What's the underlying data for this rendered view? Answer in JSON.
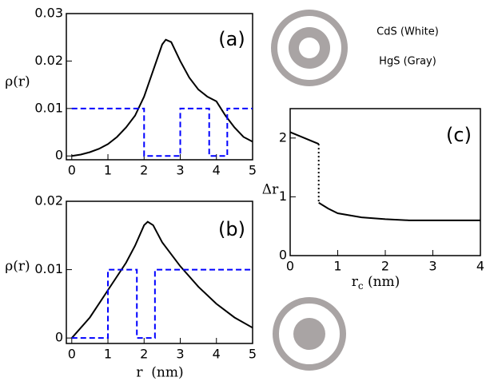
{
  "chart_data": [
    {
      "type": "line",
      "panel_label": "(a)",
      "ylabel": "ρ(r)",
      "xlim": [
        -0.15,
        5
      ],
      "ylim": [
        -0.0008,
        0.03
      ],
      "xticks": [
        0,
        1,
        2,
        3,
        4,
        5
      ],
      "yticks": [
        0,
        0.01,
        0.02,
        0.03
      ],
      "series": [
        {
          "color": "#000000",
          "dash": "solid",
          "x": [
            0,
            0.25,
            0.5,
            0.75,
            1,
            1.25,
            1.5,
            1.75,
            2,
            2.25,
            2.5,
            2.6,
            2.75,
            3,
            3.25,
            3.5,
            3.75,
            4,
            4.25,
            4.5,
            4.75,
            5
          ],
          "values": [
            0,
            0.0003,
            0.0008,
            0.0015,
            0.0025,
            0.004,
            0.006,
            0.0085,
            0.0125,
            0.018,
            0.0235,
            0.0245,
            0.024,
            0.02,
            0.0165,
            0.014,
            0.0125,
            0.0115,
            0.0085,
            0.006,
            0.004,
            0.003
          ]
        },
        {
          "color": "#0000ff",
          "dash": "dashed",
          "x": [
            0,
            2,
            2,
            3,
            3,
            3.8,
            3.8,
            4.3,
            4.3,
            5
          ],
          "values": [
            0.01,
            0.01,
            0,
            0,
            0.01,
            0.01,
            0,
            0,
            0.01,
            0.01
          ]
        }
      ]
    },
    {
      "type": "line",
      "panel_label": "(b)",
      "ylabel": "ρ(r)",
      "xlabel": "r  (nm)",
      "xlim": [
        -0.15,
        5
      ],
      "ylim": [
        -0.0008,
        0.02
      ],
      "xticks": [
        0,
        1,
        2,
        3,
        4,
        5
      ],
      "yticks": [
        0,
        0.01,
        0.02
      ],
      "series": [
        {
          "color": "#000000",
          "dash": "solid",
          "x": [
            0,
            0.5,
            1,
            1.5,
            1.75,
            2,
            2.1,
            2.25,
            2.5,
            3,
            3.5,
            4,
            4.5,
            5
          ],
          "values": [
            0,
            0.003,
            0.007,
            0.011,
            0.0135,
            0.0165,
            0.017,
            0.0165,
            0.014,
            0.0105,
            0.0075,
            0.005,
            0.003,
            0.0015
          ]
        },
        {
          "color": "#0000ff",
          "dash": "dashed",
          "x": [
            0,
            1,
            1,
            1.8,
            1.8,
            2.3,
            2.3,
            5
          ],
          "values": [
            0,
            0,
            0.01,
            0.01,
            0,
            0,
            0.01,
            0.01
          ]
        }
      ]
    },
    {
      "type": "line",
      "panel_label": "(c)",
      "ylabel": "Δr",
      "xlabel_parts": [
        "r",
        "c",
        " (nm)"
      ],
      "xlim": [
        0,
        4
      ],
      "ylim": [
        0,
        2.5
      ],
      "xticks": [
        0,
        1,
        2,
        3,
        4
      ],
      "yticks": [
        0,
        1,
        2
      ],
      "series": [
        {
          "color": "#000000",
          "dash": "solid",
          "x": [
            0,
            0.3,
            0.6
          ],
          "values": [
            2.1,
            2.0,
            1.9
          ]
        },
        {
          "color": "#000000",
          "dash": "dotted",
          "x": [
            0.6,
            0.6
          ],
          "values": [
            1.9,
            0.9
          ]
        },
        {
          "color": "#000000",
          "dash": "solid",
          "x": [
            0.6,
            0.8,
            1,
            1.5,
            2,
            2.5,
            3,
            4
          ],
          "values": [
            0.9,
            0.8,
            0.72,
            0.65,
            0.62,
            0.6,
            0.6,
            0.6
          ]
        }
      ]
    }
  ],
  "legend_text": [
    "CdS (White)",
    "HgS (Gray)"
  ]
}
